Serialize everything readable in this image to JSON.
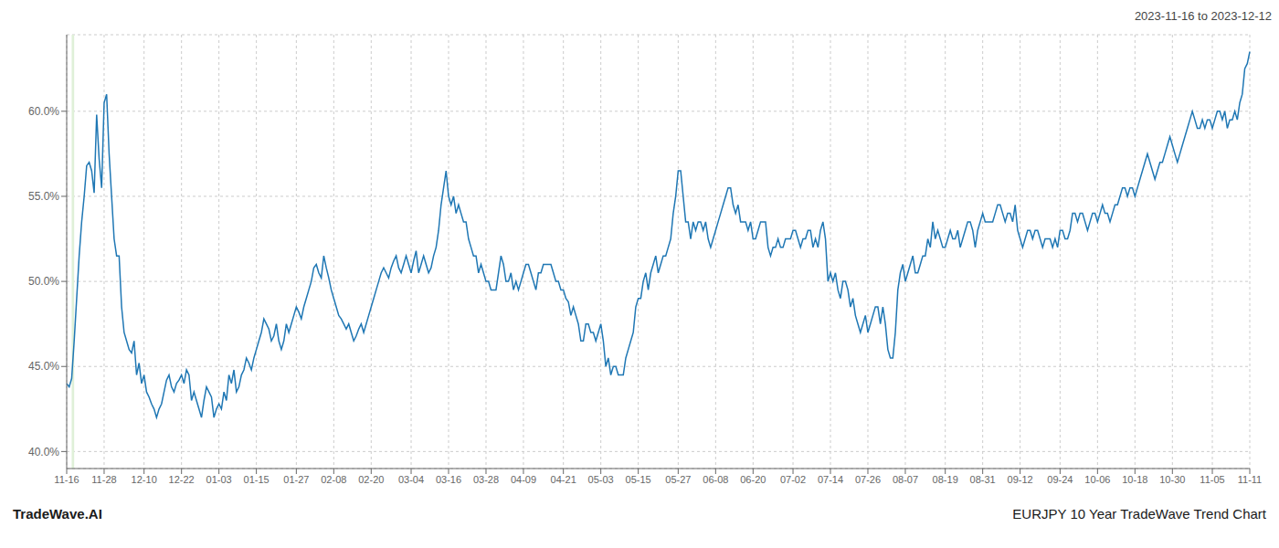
{
  "chart_data": {
    "type": "line",
    "title": "2023-11-16 to 2023-12-12",
    "annotations": [
      {
        "text": "TradeWave.AI"
      },
      {
        "text": "EURJPY 10 Year TradeWave Trend Chart"
      }
    ],
    "color": "#1f77b4",
    "grid": true,
    "ylim": [
      39.0,
      64.5
    ],
    "yticks": [
      {
        "value": 40.0,
        "label": "40.0%"
      },
      {
        "value": 45.0,
        "label": "45.0%"
      },
      {
        "value": 50.0,
        "label": "50.0%"
      },
      {
        "value": 55.0,
        "label": "55.0%"
      },
      {
        "value": 60.0,
        "label": "60.0%"
      }
    ],
    "highlight": {
      "from": 2,
      "to": 3,
      "color": "#dff0d8"
    },
    "categories": [
      "11-16",
      null,
      null,
      null,
      null,
      null,
      null,
      null,
      null,
      null,
      null,
      null,
      null,
      null,
      null,
      "11-28",
      null,
      null,
      null,
      null,
      null,
      null,
      null,
      null,
      null,
      null,
      null,
      null,
      null,
      null,
      null,
      "12-10",
      null,
      null,
      null,
      null,
      null,
      null,
      null,
      null,
      null,
      null,
      null,
      null,
      null,
      null,
      "12-22",
      null,
      null,
      null,
      null,
      null,
      null,
      null,
      null,
      null,
      null,
      null,
      null,
      null,
      null,
      "01-03",
      null,
      null,
      null,
      null,
      null,
      null,
      null,
      null,
      null,
      null,
      null,
      null,
      null,
      null,
      "01-15",
      null,
      null,
      null,
      null,
      null,
      null,
      null,
      null,
      null,
      null,
      null,
      null,
      null,
      null,
      null,
      "01-27",
      null,
      null,
      null,
      null,
      null,
      null,
      null,
      null,
      null,
      null,
      null,
      null,
      null,
      null,
      "02-08",
      null,
      null,
      null,
      null,
      null,
      null,
      null,
      null,
      null,
      null,
      null,
      null,
      null,
      null,
      "02-20",
      null,
      null,
      null,
      null,
      null,
      null,
      null,
      null,
      null,
      null,
      null,
      null,
      null,
      null,
      null,
      "03-04",
      null,
      null,
      null,
      null,
      null,
      null,
      null,
      null,
      null,
      null,
      null,
      null,
      null,
      null,
      "03-16",
      null,
      null,
      null,
      null,
      null,
      null,
      null,
      null,
      null,
      null,
      null,
      null,
      null,
      null,
      "03-28",
      null,
      null,
      null,
      null,
      null,
      null,
      null,
      null,
      null,
      null,
      null,
      null,
      null,
      null,
      "04-09",
      null,
      null,
      null,
      null,
      null,
      null,
      null,
      null,
      null,
      null,
      null,
      null,
      null,
      null,
      null,
      "04-21",
      null,
      null,
      null,
      null,
      null,
      null,
      null,
      null,
      null,
      null,
      null,
      null,
      null,
      null,
      "05-03",
      null,
      null,
      null,
      null,
      null,
      null,
      null,
      null,
      null,
      null,
      null,
      null,
      null,
      null,
      "05-15",
      null,
      null,
      null,
      null,
      null,
      null,
      null,
      null,
      null,
      null,
      null,
      null,
      null,
      null,
      null,
      "05-27",
      null,
      null,
      null,
      null,
      null,
      null,
      null,
      null,
      null,
      null,
      null,
      null,
      null,
      null,
      "06-08",
      null,
      null,
      null,
      null,
      null,
      null,
      null,
      null,
      null,
      null,
      null,
      null,
      null,
      null,
      "06-20",
      null,
      null,
      null,
      null,
      null,
      null,
      null,
      null,
      null,
      null,
      null,
      null,
      null,
      null,
      null,
      "07-02",
      null,
      null,
      null,
      null,
      null,
      null,
      null,
      null,
      null,
      null,
      null,
      null,
      null,
      null,
      "07-14",
      null,
      null,
      null,
      null,
      null,
      null,
      null,
      null,
      null,
      null,
      null,
      null,
      null,
      null,
      "07-26",
      null,
      null,
      null,
      null,
      null,
      null,
      null,
      null,
      null,
      null,
      null,
      null,
      null,
      null,
      "08-07",
      null,
      null,
      null,
      null,
      null,
      null,
      null,
      null,
      null,
      null,
      null,
      null,
      null,
      null,
      null,
      "08-19",
      null,
      null,
      null,
      null,
      null,
      null,
      null,
      null,
      null,
      null,
      null,
      null,
      null,
      null,
      "08-31",
      null,
      null,
      null,
      null,
      null,
      null,
      null,
      null,
      null,
      null,
      null,
      null,
      null,
      null,
      "09-12",
      null,
      null,
      null,
      null,
      null,
      null,
      null,
      null,
      null,
      null,
      null,
      null,
      null,
      null,
      null,
      "09-24",
      null,
      null,
      null,
      null,
      null,
      null,
      null,
      null,
      null,
      null,
      null,
      null,
      null,
      null,
      "10-06",
      null,
      null,
      null,
      null,
      null,
      null,
      null,
      null,
      null,
      null,
      null,
      null,
      null,
      null,
      "10-18",
      null,
      null,
      null,
      null,
      null,
      null,
      null,
      null,
      null,
      null,
      null,
      null,
      null,
      null,
      "10-30",
      null,
      null,
      null,
      null,
      null,
      null,
      null,
      null,
      null,
      null,
      null,
      null,
      null,
      null,
      null,
      "11-05",
      null,
      null,
      null,
      null,
      null,
      null,
      null,
      null,
      null,
      null,
      null,
      null,
      null,
      null,
      "11-11"
    ],
    "values": [
      44.0,
      43.8,
      44.3,
      46.5,
      49.0,
      51.5,
      53.5,
      55.0,
      56.8,
      57.0,
      56.5,
      55.2,
      59.8,
      57.2,
      55.5,
      60.5,
      61.0,
      57.5,
      55.0,
      52.5,
      51.5,
      51.5,
      48.5,
      47.0,
      46.5,
      46.0,
      45.8,
      46.5,
      44.5,
      45.2,
      44.0,
      44.5,
      43.5,
      43.2,
      42.8,
      42.5,
      42.0,
      42.5,
      42.8,
      43.5,
      44.2,
      44.5,
      43.8,
      43.5,
      44.0,
      44.2,
      44.5,
      44.0,
      44.8,
      44.5,
      43.0,
      43.5,
      43.0,
      42.5,
      42.0,
      43.0,
      43.8,
      43.5,
      43.2,
      42.0,
      42.5,
      42.8,
      42.5,
      43.5,
      43.0,
      44.5,
      44.0,
      44.8,
      43.5,
      43.8,
      44.5,
      44.8,
      45.5,
      45.2,
      44.8,
      45.5,
      46.0,
      46.5,
      47.0,
      47.8,
      47.5,
      47.2,
      46.5,
      46.8,
      47.5,
      46.5,
      46.0,
      46.5,
      47.5,
      47.0,
      47.5,
      48.0,
      48.5,
      48.2,
      47.8,
      48.5,
      49.0,
      49.5,
      50.0,
      50.8,
      51.0,
      50.5,
      50.2,
      51.5,
      50.8,
      50.2,
      49.5,
      49.0,
      48.5,
      48.0,
      47.8,
      47.5,
      47.2,
      47.5,
      47.0,
      46.5,
      46.8,
      47.2,
      47.5,
      47.0,
      47.5,
      48.0,
      48.5,
      49.0,
      49.5,
      50.0,
      50.5,
      50.8,
      50.5,
      50.2,
      50.8,
      51.2,
      51.5,
      50.8,
      50.5,
      51.0,
      51.5,
      51.0,
      50.5,
      51.2,
      51.8,
      50.5,
      51.0,
      51.5,
      51.0,
      50.5,
      50.8,
      51.5,
      52.0,
      53.0,
      54.5,
      55.5,
      56.5,
      55.0,
      54.5,
      55.0,
      54.0,
      54.5,
      54.0,
      53.5,
      53.5,
      52.5,
      52.0,
      51.5,
      51.5,
      50.5,
      51.0,
      50.5,
      50.0,
      50.0,
      49.5,
      49.5,
      49.5,
      50.5,
      51.5,
      51.0,
      50.0,
      50.0,
      50.5,
      49.5,
      50.0,
      49.5,
      50.0,
      50.5,
      51.0,
      51.0,
      50.5,
      50.0,
      49.5,
      50.5,
      50.5,
      51.0,
      51.0,
      51.0,
      51.0,
      50.5,
      50.0,
      50.0,
      49.5,
      49.5,
      49.0,
      48.8,
      48.0,
      48.5,
      48.0,
      47.5,
      46.5,
      46.5,
      47.5,
      47.5,
      47.0,
      47.0,
      46.5,
      47.0,
      47.5,
      46.5,
      45.0,
      45.5,
      44.5,
      45.0,
      45.0,
      44.5,
      44.5,
      44.5,
      45.5,
      46.0,
      46.5,
      47.0,
      48.5,
      49.0,
      49.0,
      50.0,
      50.5,
      49.5,
      50.5,
      51.0,
      51.5,
      50.5,
      51.0,
      51.5,
      51.5,
      52.0,
      52.5,
      54.0,
      55.0,
      56.5,
      56.5,
      55.0,
      53.5,
      53.5,
      52.5,
      53.5,
      53.0,
      53.5,
      53.5,
      53.0,
      53.5,
      52.5,
      52.0,
      52.5,
      53.0,
      53.5,
      54.0,
      54.5,
      55.0,
      55.5,
      55.5,
      54.5,
      54.0,
      54.5,
      53.5,
      53.5,
      53.5,
      53.0,
      53.5,
      52.5,
      52.5,
      53.0,
      53.5,
      53.5,
      53.5,
      52.0,
      51.5,
      52.0,
      52.0,
      52.5,
      52.0,
      52.0,
      52.5,
      52.5,
      52.5,
      53.0,
      53.0,
      52.5,
      52.0,
      52.5,
      52.5,
      53.0,
      53.0,
      52.0,
      52.5,
      52.0,
      53.0,
      53.5,
      52.5,
      50.0,
      50.5,
      50.0,
      50.5,
      49.5,
      49.0,
      50.0,
      50.0,
      49.5,
      48.5,
      49.0,
      48.0,
      47.5,
      47.0,
      47.5,
      48.0,
      47.0,
      47.5,
      48.0,
      48.5,
      48.5,
      47.5,
      48.5,
      47.5,
      46.0,
      45.5,
      45.5,
      47.0,
      49.5,
      50.5,
      51.0,
      50.0,
      50.5,
      51.0,
      51.5,
      50.5,
      50.5,
      51.0,
      51.5,
      51.5,
      52.5,
      52.0,
      53.5,
      52.5,
      53.0,
      52.5,
      52.0,
      52.0,
      52.5,
      53.0,
      52.5,
      52.5,
      53.0,
      52.0,
      52.5,
      53.0,
      53.5,
      53.5,
      53.0,
      52.0,
      53.0,
      53.5,
      54.0,
      53.5,
      53.5,
      53.5,
      53.5,
      54.0,
      54.5,
      54.5,
      54.0,
      53.5,
      54.0,
      54.0,
      53.5,
      54.5,
      53.0,
      52.5,
      52.0,
      52.5,
      53.0,
      53.0,
      52.5,
      53.0,
      53.0,
      52.5,
      52.0,
      52.5,
      52.5,
      52.5,
      52.0,
      52.5,
      52.0,
      53.0,
      53.0,
      52.5,
      52.5,
      53.0,
      54.0,
      54.0,
      53.5,
      54.0,
      54.0,
      53.5,
      53.0,
      53.5,
      54.0,
      54.0,
      53.5,
      54.0,
      54.5,
      54.0,
      54.0,
      53.5,
      54.0,
      54.5,
      54.5,
      55.0,
      55.5,
      55.5,
      55.0,
      55.5,
      55.5,
      55.0,
      55.5,
      56.0,
      56.5,
      57.0,
      57.5,
      57.0,
      56.5,
      56.0,
      56.5,
      57.0,
      57.0,
      57.5,
      58.0,
      58.5,
      58.0,
      57.5,
      57.0,
      57.5,
      58.0,
      58.5,
      59.0,
      59.5,
      60.0,
      59.5,
      59.0,
      59.0,
      59.5,
      59.0,
      59.5,
      59.5,
      59.0,
      59.5,
      60.0,
      60.0,
      59.5,
      60.0,
      59.0,
      59.5,
      59.5,
      60.0,
      59.5,
      60.5,
      61.0,
      62.5,
      62.8,
      63.5
    ]
  }
}
